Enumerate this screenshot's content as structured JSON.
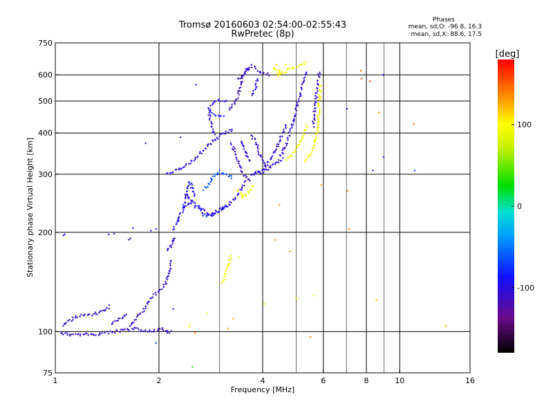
{
  "chart_data": {
    "type": "scatter",
    "title": "Tromsø 20160603 02:54:00-02:55:43",
    "subtitle": "RwPretec (8p)",
    "xlabel": "Frequency [MHz]",
    "ylabel": "Stationary phase Virtual Height [km]",
    "x_scale": "log2",
    "y_scale": "log",
    "xlim": [
      1,
      16
    ],
    "ylim": [
      75,
      750
    ],
    "x_ticks": [
      "1",
      "2",
      "4",
      "6",
      "8",
      "10",
      "16"
    ],
    "x_tick_values": [
      1,
      2,
      4,
      6,
      8,
      10,
      16
    ],
    "x_minor_values": [
      3,
      5,
      7,
      9
    ],
    "y_ticks": [
      "75",
      "100",
      "200",
      "300",
      "400",
      "500",
      "600",
      "750"
    ],
    "y_tick_values": [
      75,
      100,
      200,
      300,
      400,
      500,
      600,
      750
    ],
    "grid": true,
    "stats": {
      "header": "Phases",
      "line_o": "mean, sd,O: -96.8, 16.3",
      "line_x": "mean, sd,X:  88.6, 17.5"
    },
    "colorbar": {
      "unit": "[deg]",
      "min": -180,
      "max": 180,
      "ticks": [
        "100",
        "0",
        "-100"
      ],
      "tick_values": [
        100,
        0,
        -100
      ]
    },
    "traces": [
      {
        "f": [
          1.04,
          1.1,
          1.2,
          1.3,
          1.4,
          1.5,
          1.6,
          1.7,
          1.78,
          1.83,
          1.88,
          1.95,
          2.05,
          2.1,
          2.15,
          2.2
        ],
        "h": [
          99,
          98,
          98,
          98,
          99,
          100,
          101,
          102,
          101,
          101,
          100,
          101,
          102,
          100,
          99,
          100
        ],
        "phase": -108
      },
      {
        "f": [
          1.05,
          1.1,
          1.15,
          1.2,
          1.3,
          1.4,
          1.45
        ],
        "h": [
          104,
          108,
          111,
          112,
          113,
          116,
          120
        ],
        "phase": -106
      },
      {
        "f": [
          1.45,
          1.5,
          1.58,
          1.62
        ],
        "h": [
          106,
          108,
          110,
          113
        ],
        "phase": -104
      },
      {
        "f": [
          1.65,
          1.72,
          1.8,
          1.86,
          1.92,
          2.0,
          2.05,
          2.1,
          2.14,
          2.18
        ],
        "h": [
          104,
          110,
          116,
          122,
          128,
          132,
          136,
          142,
          152,
          165
        ],
        "phase": -108
      },
      {
        "f": [
          2.12,
          2.15,
          2.18,
          2.2,
          2.22
        ],
        "h": [
          175,
          180,
          185,
          190,
          195
        ],
        "phase": -105
      },
      {
        "f": [
          2.2,
          2.24,
          2.28,
          2.32,
          2.36,
          2.4,
          2.45,
          2.5
        ],
        "h": [
          205,
          212,
          220,
          228,
          235,
          240,
          244,
          246
        ],
        "phase": -95
      },
      {
        "f": [
          2.35,
          2.4,
          2.45,
          2.5,
          2.55
        ],
        "h": [
          236,
          262,
          284,
          272,
          254
        ],
        "phase": -92
      },
      {
        "f": [
          2.55,
          2.6,
          2.65,
          2.7,
          2.8,
          2.9,
          3.0,
          3.1,
          3.2
        ],
        "h": [
          238,
          240,
          232,
          226,
          224,
          228,
          232,
          238,
          242
        ],
        "phase": -85
      },
      {
        "f": [
          2.4,
          2.5,
          2.6,
          2.7,
          2.8,
          2.9,
          3.0,
          3.1,
          3.2,
          3.3,
          3.4,
          3.5,
          3.6
        ],
        "h": [
          262,
          246,
          238,
          232,
          228,
          230,
          234,
          238,
          244,
          252,
          262,
          274,
          288
        ],
        "phase": -102
      },
      {
        "f": [
          2.7,
          2.8,
          2.9,
          3.0,
          3.1,
          3.2,
          3.3
        ],
        "h": [
          270,
          282,
          296,
          306,
          302,
          296,
          292
        ],
        "phase": -65
      },
      {
        "f": [
          3.4,
          3.45,
          3.5,
          3.55,
          3.6,
          3.7,
          3.8
        ],
        "h": [
          268,
          262,
          256,
          258,
          262,
          270,
          276
        ],
        "phase": 96
      },
      {
        "f": [
          3.7,
          3.8,
          3.9,
          4.0,
          4.1,
          4.2,
          4.3,
          4.4,
          4.5,
          4.6
        ],
        "h": [
          298,
          300,
          303,
          305,
          310,
          315,
          320,
          325,
          330,
          338
        ],
        "phase": -104
      },
      {
        "f": [
          3.25,
          3.3,
          3.35,
          3.4,
          3.45,
          3.5,
          3.55,
          3.6,
          3.65,
          3.7
        ],
        "h": [
          372,
          358,
          342,
          326,
          314,
          302,
          296,
          292,
          288,
          286
        ],
        "phase": -110
      },
      {
        "f": [
          3.45,
          3.5,
          3.55,
          3.6,
          3.7
        ],
        "h": [
          380,
          368,
          358,
          342,
          326
        ],
        "phase": -100
      },
      {
        "f": [
          3.7,
          3.8,
          3.85,
          3.9,
          4.0,
          4.1
        ],
        "h": [
          390,
          380,
          364,
          348,
          332,
          318
        ],
        "phase": -108
      },
      {
        "f": [
          3.8,
          3.9,
          4.0,
          4.1,
          4.2,
          4.3,
          4.4,
          4.5,
          4.6,
          4.7
        ],
        "h": [
          304,
          306,
          310,
          318,
          330,
          345,
          362,
          382,
          405,
          430
        ],
        "phase": -105
      },
      {
        "f": [
          4.5,
          4.6,
          4.7,
          4.8,
          4.9,
          5.0,
          5.1,
          5.2,
          5.3,
          5.35
        ],
        "h": [
          340,
          355,
          375,
          400,
          430,
          465,
          505,
          545,
          590,
          620
        ],
        "phase": -108
      },
      {
        "f": [
          4.7,
          4.8,
          4.9,
          5.0,
          5.1,
          5.2,
          5.3,
          5.4
        ],
        "h": [
          332,
          338,
          346,
          355,
          368,
          382,
          400,
          425
        ],
        "phase": 92
      },
      {
        "f": [
          5.3,
          5.4,
          5.5,
          5.6,
          5.7,
          5.75,
          5.8,
          5.85,
          5.9
        ],
        "h": [
          326,
          335,
          345,
          360,
          380,
          400,
          440,
          500,
          560
        ],
        "phase": 100
      },
      {
        "f": [
          5.6,
          5.65,
          5.7,
          5.75,
          5.8,
          5.85
        ],
        "h": [
          420,
          460,
          500,
          540,
          580,
          620
        ],
        "phase": -108
      },
      {
        "f": [
          2.9,
          2.85,
          2.8,
          2.8,
          2.9,
          3.0,
          3.1,
          3.2
        ],
        "h": [
          395,
          420,
          450,
          480,
          500,
          505,
          500,
          495
        ],
        "phase": -104
      },
      {
        "f": [
          2.8,
          2.9,
          3.0,
          3.1
        ],
        "h": [
          468,
          455,
          450,
          452
        ],
        "phase": -85
      },
      {
        "f": [
          3.2,
          3.3,
          3.4,
          3.45,
          3.5,
          3.6,
          3.7
        ],
        "h": [
          470,
          490,
          520,
          560,
          600,
          620,
          630
        ],
        "phase": -112
      },
      {
        "f": [
          3.4,
          3.5,
          3.6,
          3.7,
          3.8,
          3.9,
          4.0,
          4.2
        ],
        "h": [
          580,
          600,
          620,
          640,
          630,
          615,
          605,
          600
        ],
        "phase": -108
      },
      {
        "f": [
          3.75,
          3.8,
          3.85,
          3.9
        ],
        "h": [
          520,
          545,
          570,
          590
        ],
        "phase": -100
      },
      {
        "f": [
          2.1,
          2.3,
          2.5,
          2.7,
          2.9,
          3.1,
          3.3
        ],
        "h": [
          300,
          310,
          330,
          355,
          380,
          400,
          410
        ],
        "phase": -100
      },
      {
        "f": [
          3.05,
          3.1,
          3.15,
          3.2,
          3.25
        ],
        "h": [
          140,
          148,
          155,
          162,
          170
        ],
        "phase": 92
      },
      {
        "f": [
          4.3,
          4.5,
          4.4,
          4.6,
          4.8,
          5.1,
          5.4
        ],
        "h": [
          630,
          620,
          600,
          610,
          625,
          640,
          655
        ],
        "phase": 95
      }
    ],
    "scatter_points": [
      {
        "f": 1.05,
        "h": 196,
        "phase": -108
      },
      {
        "f": 1.07,
        "h": 197,
        "phase": -104
      },
      {
        "f": 1.42,
        "h": 196,
        "phase": -105
      },
      {
        "f": 1.48,
        "h": 198,
        "phase": -106
      },
      {
        "f": 1.68,
        "h": 206,
        "phase": -104
      },
      {
        "f": 1.9,
        "h": 203,
        "phase": -108
      },
      {
        "f": 1.97,
        "h": 205,
        "phase": -106
      },
      {
        "f": 1.63,
        "h": 190,
        "phase": -108
      },
      {
        "f": 1.66,
        "h": 193,
        "phase": -104
      },
      {
        "f": 1.84,
        "h": 370,
        "phase": -104
      },
      {
        "f": 2.3,
        "h": 390,
        "phase": -108
      },
      {
        "f": 2.55,
        "h": 555,
        "phase": -92
      },
      {
        "f": 2.45,
        "h": 103,
        "phase": 108
      },
      {
        "f": 2.47,
        "h": 105,
        "phase": 102
      },
      {
        "f": 2.55,
        "h": 99,
        "phase": 150
      },
      {
        "f": 2.75,
        "h": 114,
        "phase": 98
      },
      {
        "f": 3.15,
        "h": 103,
        "phase": 135
      },
      {
        "f": 3.3,
        "h": 109,
        "phase": 128
      },
      {
        "f": 3.4,
        "h": 167,
        "phase": 92
      },
      {
        "f": 2.5,
        "h": 78,
        "phase": 30
      },
      {
        "f": 2.2,
        "h": 118,
        "phase": -75
      },
      {
        "f": 1.95,
        "h": 92,
        "phase": -70
      },
      {
        "f": 4.5,
        "h": 240,
        "phase": 138
      },
      {
        "f": 4.8,
        "h": 175,
        "phase": 125
      },
      {
        "f": 5.0,
        "h": 125,
        "phase": 110
      },
      {
        "f": 5.6,
        "h": 128,
        "phase": 95
      },
      {
        "f": 5.5,
        "h": 96,
        "phase": 140
      },
      {
        "f": 5.95,
        "h": 280,
        "phase": 130
      },
      {
        "f": 7.1,
        "h": 265,
        "phase": 145
      },
      {
        "f": 7.1,
        "h": 205,
        "phase": 135
      },
      {
        "f": 7.7,
        "h": 620,
        "phase": 150
      },
      {
        "f": 7.8,
        "h": 590,
        "phase": 150
      },
      {
        "f": 8.2,
        "h": 575,
        "phase": 160
      },
      {
        "f": 7.05,
        "h": 470,
        "phase": -108
      },
      {
        "f": 8.3,
        "h": 305,
        "phase": -105
      },
      {
        "f": 8.5,
        "h": 125,
        "phase": 125
      },
      {
        "f": 8.7,
        "h": 460,
        "phase": 138
      },
      {
        "f": 9.0,
        "h": 600,
        "phase": -110
      },
      {
        "f": 9.0,
        "h": 340,
        "phase": -100
      },
      {
        "f": 11.0,
        "h": 425,
        "phase": 145
      },
      {
        "f": 11.0,
        "h": 310,
        "phase": -60
      },
      {
        "f": 13.5,
        "h": 104,
        "phase": 135
      },
      {
        "f": 4.05,
        "h": 122,
        "phase": 110
      },
      {
        "f": 4.4,
        "h": 640,
        "phase": 118
      },
      {
        "f": 4.7,
        "h": 650,
        "phase": 112
      },
      {
        "f": 4.35,
        "h": 190,
        "phase": 130
      }
    ]
  }
}
